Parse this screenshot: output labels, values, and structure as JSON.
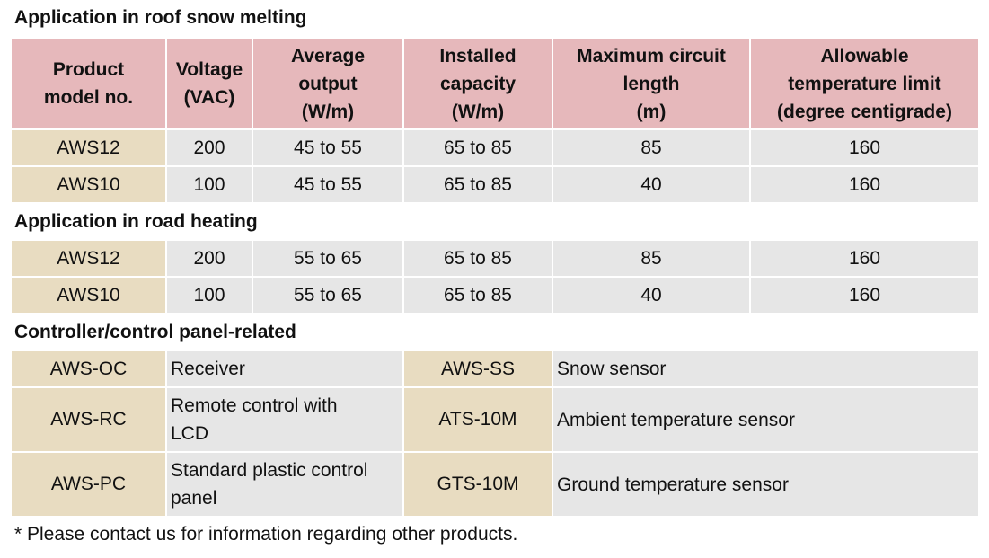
{
  "roof": {
    "title": "Application in roof snow melting",
    "headers": [
      "Product model no.",
      "Voltage (VAC)",
      "Average output (W/m)",
      "Installed capacity (W/m)",
      "Maximum circuit length (m)",
      "Allowable temperature limit (degree centigrade)"
    ],
    "header_lines": [
      [
        "Product",
        "model no."
      ],
      [
        "Voltage",
        "(VAC)"
      ],
      [
        "Average",
        "output",
        "(W/m)"
      ],
      [
        "Installed",
        "capacity",
        "(W/m)"
      ],
      [
        "Maximum circuit",
        "length",
        "(m)"
      ],
      [
        "Allowable",
        "temperature limit",
        "(degree centigrade)"
      ]
    ],
    "rows": [
      [
        "AWS12",
        "200",
        "45 to 55",
        "65 to 85",
        "85",
        "160"
      ],
      [
        "AWS10",
        "100",
        "45 to 55",
        "65 to 85",
        "40",
        "160"
      ]
    ]
  },
  "road": {
    "title": "Application in road heating",
    "rows": [
      [
        "AWS12",
        "200",
        "55 to 65",
        "65 to 85",
        "85",
        "160"
      ],
      [
        "AWS10",
        "100",
        "55 to 65",
        "65 to 85",
        "40",
        "160"
      ]
    ]
  },
  "controller": {
    "title": "Controller/control panel-related",
    "rows": [
      {
        "model1": "AWS-OC",
        "desc1": "Receiver",
        "model2": "AWS-SS",
        "desc2": "Snow sensor"
      },
      {
        "model1": "AWS-RC",
        "desc1": "Remote control with LCD",
        "desc1_lines": [
          "Remote control with",
          "LCD"
        ],
        "model2": "ATS-10M",
        "desc2": "Ambient temperature sensor"
      },
      {
        "model1": "AWS-PC",
        "desc1": "Standard plastic control panel",
        "desc1_lines": [
          "Standard plastic control",
          "panel"
        ],
        "model2": "GTS-10M",
        "desc2": "Ground temperature sensor"
      }
    ]
  },
  "footnote": "* Please contact us for information regarding other products.",
  "colors": {
    "header_bg": "#e6b8bb",
    "model_bg": "#e8dcc1",
    "value_bg": "#e6e6e6"
  }
}
